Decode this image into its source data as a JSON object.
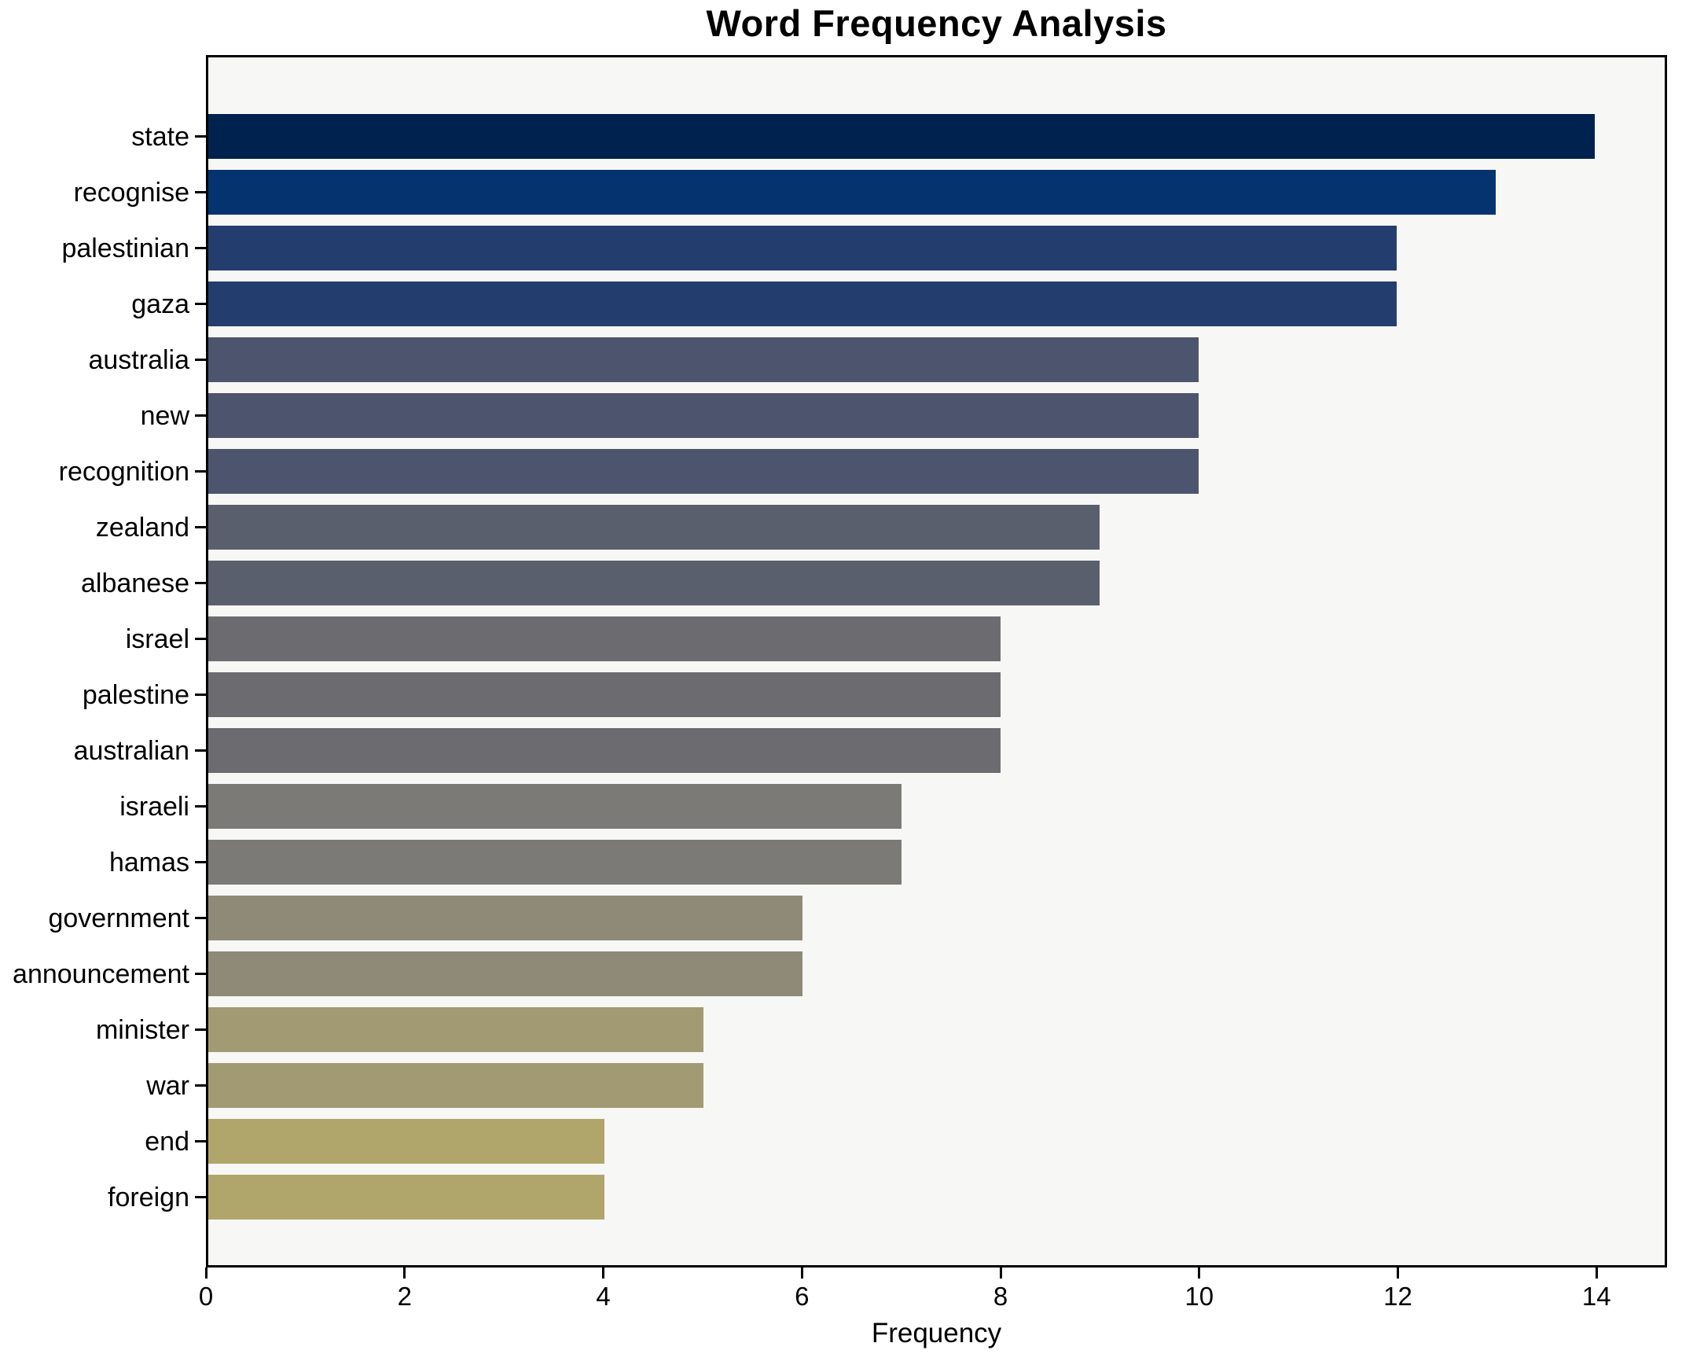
{
  "chart_data": {
    "type": "bar",
    "orientation": "horizontal",
    "title": "Word Frequency Analysis",
    "xlabel": "Frequency",
    "ylabel": "",
    "categories": [
      "state",
      "recognise",
      "palestinian",
      "gaza",
      "australia",
      "new",
      "recognition",
      "zealand",
      "albanese",
      "israel",
      "palestine",
      "australian",
      "israeli",
      "hamas",
      "government",
      "announcement",
      "minister",
      "war",
      "end",
      "foreign"
    ],
    "values": [
      14,
      13,
      12,
      12,
      10,
      10,
      10,
      9,
      9,
      8,
      8,
      8,
      7,
      7,
      6,
      6,
      5,
      5,
      4,
      4
    ],
    "bar_colors": [
      "#00224e",
      "#04336f",
      "#233e6e",
      "#233e6e",
      "#4d556e",
      "#4d556e",
      "#4d556e",
      "#5a5f6d",
      "#5a5f6d",
      "#6c6c70",
      "#6c6c70",
      "#6c6c70",
      "#7b7a76",
      "#7b7a76",
      "#8f8978",
      "#8f8978",
      "#a29a73",
      "#a29a73",
      "#b0a66c",
      "#b0a66c"
    ],
    "x_ticks": [
      0,
      2,
      4,
      6,
      8,
      10,
      12,
      14
    ],
    "xlim": [
      0,
      14.71
    ],
    "grid": false,
    "legend": false,
    "plot_background": "#f7f7f6",
    "figure_background": "#ffffff",
    "spine_color": "#000000",
    "text_color": "#000000"
  }
}
